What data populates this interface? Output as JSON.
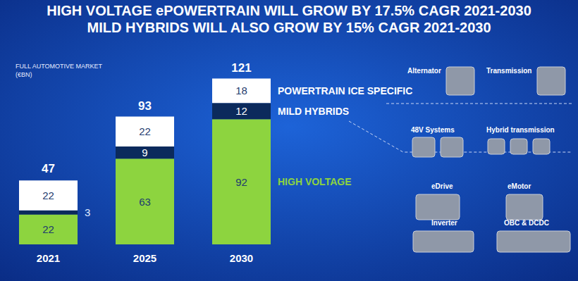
{
  "chart_data": {
    "type": "bar",
    "title": "HIGH VOLTAGE ePOWERTRAIN WILL GROW BY 17.5% CAGR 2021-2030",
    "subtitle": "MILD HYBRIDS WILL ALSO GROW BY 15% CAGR 2021-2030",
    "ylabel": "FULL AUTOMOTIVE MARKET\n(€BN)",
    "categories": [
      "2021",
      "2025",
      "2030"
    ],
    "series": [
      {
        "name": "HIGH VOLTAGE",
        "color": "#8dd43f",
        "values": [
          22,
          63,
          92
        ]
      },
      {
        "name": "MILD HYBRIDS",
        "color": "#0b2a5c",
        "values": [
          3,
          9,
          12
        ]
      },
      {
        "name": "POWERTRAIN ICE SPECIFIC",
        "color": "#ffffff",
        "values": [
          22,
          22,
          18
        ]
      }
    ],
    "totals": [
      47,
      93,
      121
    ],
    "annotations": [
      "Alternator",
      "Transmission",
      "48V Systems",
      "Hybrid transmission",
      "eDrive",
      "eMotor",
      "Inverter",
      "OBC & DCDC"
    ],
    "ylim": [
      0,
      130
    ],
    "stacked": true,
    "data_labels": true,
    "tick_labels": "x",
    "grid": false
  }
}
